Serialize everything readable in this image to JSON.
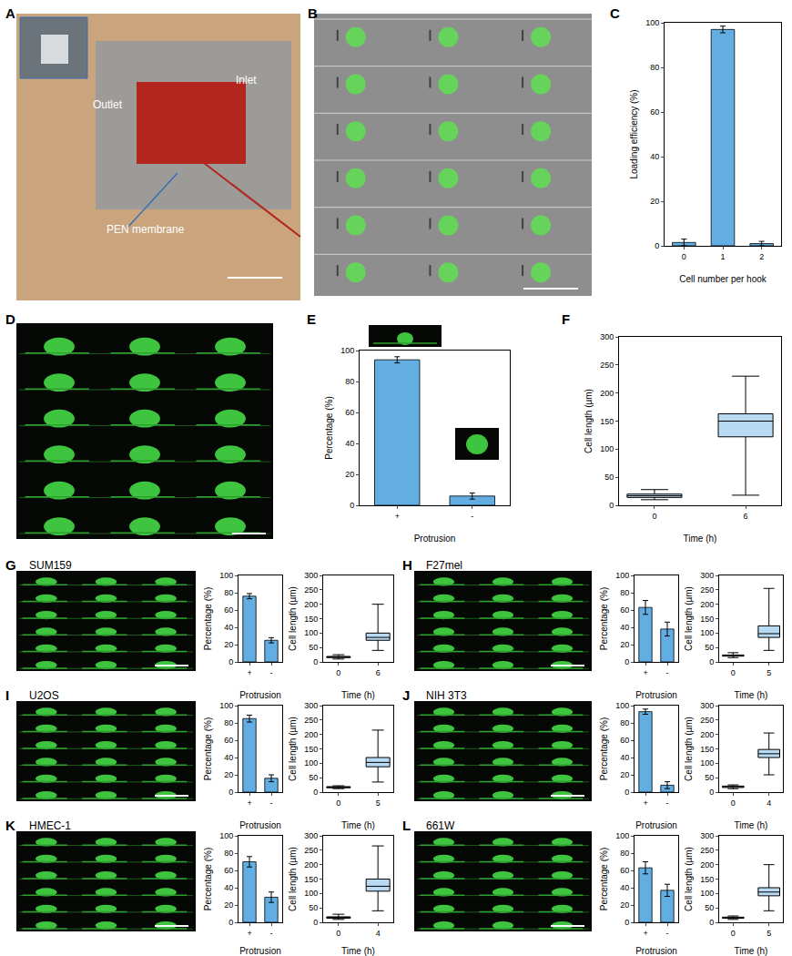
{
  "panel_labels": [
    "A",
    "B",
    "C",
    "D",
    "E",
    "F",
    "G",
    "H",
    "I",
    "J",
    "K",
    "L"
  ],
  "photo_labels": [
    "Inlet",
    "Outlet",
    "PEN membrane"
  ],
  "cell_lines": [
    "SUM159",
    "F27mel",
    "U2OS",
    "NIH 3T3",
    "HMEC-1",
    "661W"
  ],
  "chart_data": [
    {
      "type": "bar",
      "categories": [
        "0",
        "1",
        "2"
      ],
      "values": [
        1.5,
        97,
        1
      ],
      "errors": [
        1.5,
        1.5,
        1
      ],
      "color": "#62aee2",
      "x_label": "Cell number per hook",
      "y_label": "Loading efficiency (%)",
      "ylim": [
        0,
        100
      ],
      "yticks": [
        0,
        20,
        40,
        60,
        80,
        100
      ]
    },
    {
      "type": "bar",
      "categories": [
        "+",
        "-"
      ],
      "values": [
        94,
        6
      ],
      "errors": [
        2,
        2
      ],
      "color": "#62aee2",
      "x_label": "Protrusion",
      "y_label": "Percentage (%)",
      "ylim": [
        0,
        100
      ],
      "yticks": [
        0,
        20,
        40,
        60,
        80,
        100
      ]
    },
    {
      "type": "box",
      "categories": [
        "0",
        "6"
      ],
      "lowerfence": [
        10,
        18
      ],
      "q1": [
        14,
        122
      ],
      "median": [
        17,
        150
      ],
      "q3": [
        20,
        163
      ],
      "upperfence": [
        28,
        230
      ],
      "color": "#62aee2",
      "x_label": "Time (h)",
      "y_label": "Cell length (µm)",
      "ylim": [
        0,
        300
      ],
      "yticks": [
        0,
        50,
        100,
        150,
        200,
        250,
        300
      ]
    },
    {
      "type": "bar",
      "categories": [
        "+",
        "-"
      ],
      "values": [
        76,
        25
      ],
      "errors": [
        3,
        3
      ],
      "color": "#62aee2",
      "x_label": "Protrusion",
      "y_label": "Percentage (%)",
      "ylim": [
        0,
        100
      ],
      "yticks": [
        0,
        20,
        40,
        60,
        80,
        100
      ]
    },
    {
      "type": "box",
      "categories": [
        "0",
        "6"
      ],
      "lowerfence": [
        10,
        40
      ],
      "q1": [
        15,
        75
      ],
      "median": [
        17,
        85
      ],
      "q3": [
        19,
        100
      ],
      "upperfence": [
        25,
        200
      ],
      "color": "#62aee2",
      "x_label": "Time (h)",
      "y_label": "Cell length (µm)",
      "ylim": [
        0,
        300
      ],
      "yticks": [
        0,
        50,
        100,
        150,
        200,
        250,
        300
      ]
    },
    {
      "type": "bar",
      "categories": [
        "+",
        "-"
      ],
      "values": [
        63,
        38
      ],
      "errors": [
        8,
        8
      ],
      "color": "#62aee2",
      "x_label": "Protrusion",
      "y_label": "Percentage (%)",
      "ylim": [
        0,
        100
      ],
      "yticks": [
        0,
        20,
        40,
        60,
        80,
        100
      ]
    },
    {
      "type": "box",
      "categories": [
        "0",
        "5"
      ],
      "lowerfence": [
        15,
        40
      ],
      "q1": [
        20,
        85
      ],
      "median": [
        22,
        98
      ],
      "q3": [
        24,
        125
      ],
      "upperfence": [
        32,
        255
      ],
      "color": "#62aee2",
      "x_label": "Time (h)",
      "y_label": "Cell length (µm)",
      "ylim": [
        0,
        300
      ],
      "yticks": [
        0,
        50,
        100,
        150,
        200,
        250,
        300
      ]
    },
    {
      "type": "bar",
      "categories": [
        "+",
        "-"
      ],
      "values": [
        85,
        16
      ],
      "errors": [
        4,
        4
      ],
      "color": "#62aee2",
      "x_label": "Protrusion",
      "y_label": "Percentage (%)",
      "ylim": [
        0,
        100
      ],
      "yticks": [
        0,
        20,
        40,
        60,
        80,
        100
      ]
    },
    {
      "type": "box",
      "categories": [
        "0",
        "5"
      ],
      "lowerfence": [
        12,
        35
      ],
      "q1": [
        15,
        88
      ],
      "median": [
        17,
        103
      ],
      "q3": [
        19,
        120
      ],
      "upperfence": [
        22,
        215
      ],
      "color": "#62aee2",
      "x_label": "Time (h)",
      "y_label": "Cell length (µm)",
      "ylim": [
        0,
        300
      ],
      "yticks": [
        0,
        50,
        100,
        150,
        200,
        250,
        300
      ]
    },
    {
      "type": "bar",
      "categories": [
        "+",
        "-"
      ],
      "values": [
        93,
        8
      ],
      "errors": [
        3,
        4
      ],
      "color": "#62aee2",
      "x_label": "Protrusion",
      "y_label": "Percentage (%)",
      "ylim": [
        0,
        100
      ],
      "yticks": [
        0,
        20,
        40,
        60,
        80,
        100
      ]
    },
    {
      "type": "box",
      "categories": [
        "0",
        "4"
      ],
      "lowerfence": [
        12,
        60
      ],
      "q1": [
        16,
        120
      ],
      "median": [
        19,
        133
      ],
      "q3": [
        21,
        148
      ],
      "upperfence": [
        25,
        205
      ],
      "color": "#62aee2",
      "x_label": "Time (h)",
      "y_label": "Cell length (µm)",
      "ylim": [
        0,
        300
      ],
      "yticks": [
        0,
        50,
        100,
        150,
        200,
        250,
        300
      ]
    },
    {
      "type": "bar",
      "categories": [
        "+",
        "-"
      ],
      "values": [
        70,
        29
      ],
      "errors": [
        6,
        6
      ],
      "color": "#62aee2",
      "x_label": "Protrusion",
      "y_label": "Percentage (%)",
      "ylim": [
        0,
        100
      ],
      "yticks": [
        0,
        20,
        40,
        60,
        80,
        100
      ]
    },
    {
      "type": "box",
      "categories": [
        "0",
        "4"
      ],
      "lowerfence": [
        10,
        40
      ],
      "q1": [
        14,
        108
      ],
      "median": [
        17,
        125
      ],
      "q3": [
        19,
        150
      ],
      "upperfence": [
        28,
        265
      ],
      "color": "#62aee2",
      "x_label": "Time (h)",
      "y_label": "Cell length (µm)",
      "ylim": [
        0,
        300
      ],
      "yticks": [
        0,
        50,
        100,
        150,
        200,
        250,
        300
      ]
    },
    {
      "type": "bar",
      "categories": [
        "+",
        "-"
      ],
      "values": [
        63,
        37
      ],
      "errors": [
        7,
        7
      ],
      "color": "#62aee2",
      "x_label": "Protrusion",
      "y_label": "Percentage (%)",
      "ylim": [
        0,
        100
      ],
      "yticks": [
        0,
        20,
        40,
        60,
        80,
        100
      ]
    },
    {
      "type": "box",
      "categories": [
        "0",
        "5"
      ],
      "lowerfence": [
        10,
        40
      ],
      "q1": [
        14,
        92
      ],
      "median": [
        16,
        105
      ],
      "q3": [
        18,
        120
      ],
      "upperfence": [
        22,
        200
      ],
      "color": "#62aee2",
      "x_label": "Time (h)",
      "y_label": "Cell length (µm)",
      "ylim": [
        0,
        300
      ],
      "yticks": [
        0,
        50,
        100,
        150,
        200,
        250,
        300
      ]
    }
  ]
}
